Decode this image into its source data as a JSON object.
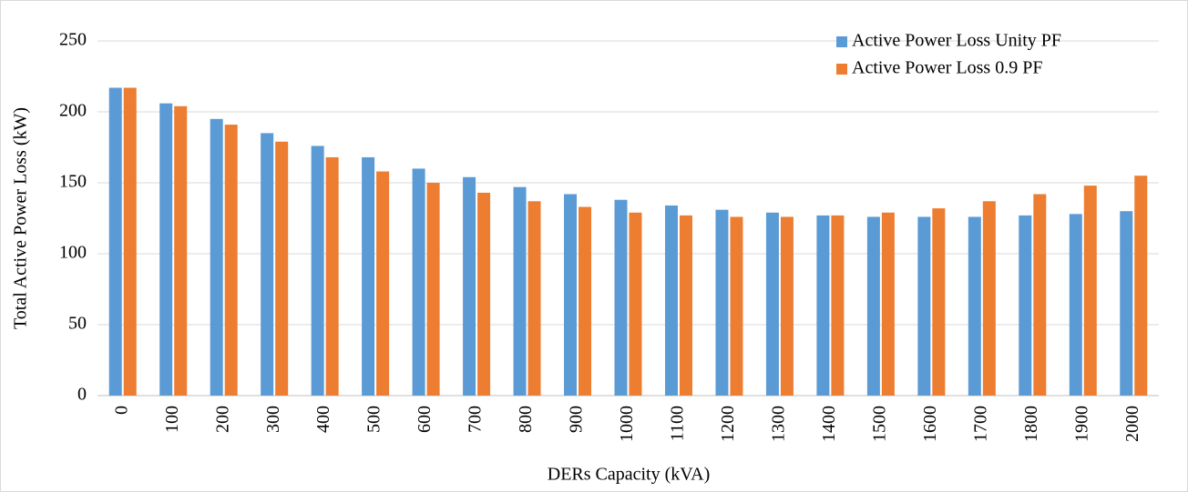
{
  "chart_data": {
    "type": "bar",
    "x_label": "DERs Capacity (kVA)",
    "y_label": "Total Active Power Loss (kW)",
    "categories": [
      "0",
      "100",
      "200",
      "300",
      "400",
      "500",
      "600",
      "700",
      "800",
      "900",
      "1000",
      "1100",
      "1200",
      "1300",
      "1400",
      "1500",
      "1600",
      "1700",
      "1800",
      "1900",
      "2000"
    ],
    "series": [
      {
        "name": "Active Power Loss Unity PF",
        "color": "#5b9bd5",
        "values": [
          217,
          206,
          195,
          185,
          176,
          168,
          160,
          154,
          147,
          142,
          138,
          134,
          131,
          129,
          127,
          126,
          126,
          126,
          127,
          128,
          130
        ]
      },
      {
        "name": "Active Power Loss 0.9 PF",
        "color": "#ed7d31",
        "values": [
          217,
          204,
          191,
          179,
          168,
          158,
          150,
          143,
          137,
          133,
          129,
          127,
          126,
          126,
          127,
          129,
          132,
          137,
          142,
          148,
          155
        ]
      }
    ],
    "ylim": [
      0,
      250
    ],
    "yticks": [
      0,
      50,
      100,
      150,
      200,
      250
    ],
    "grid": true,
    "legend": "upper right"
  }
}
